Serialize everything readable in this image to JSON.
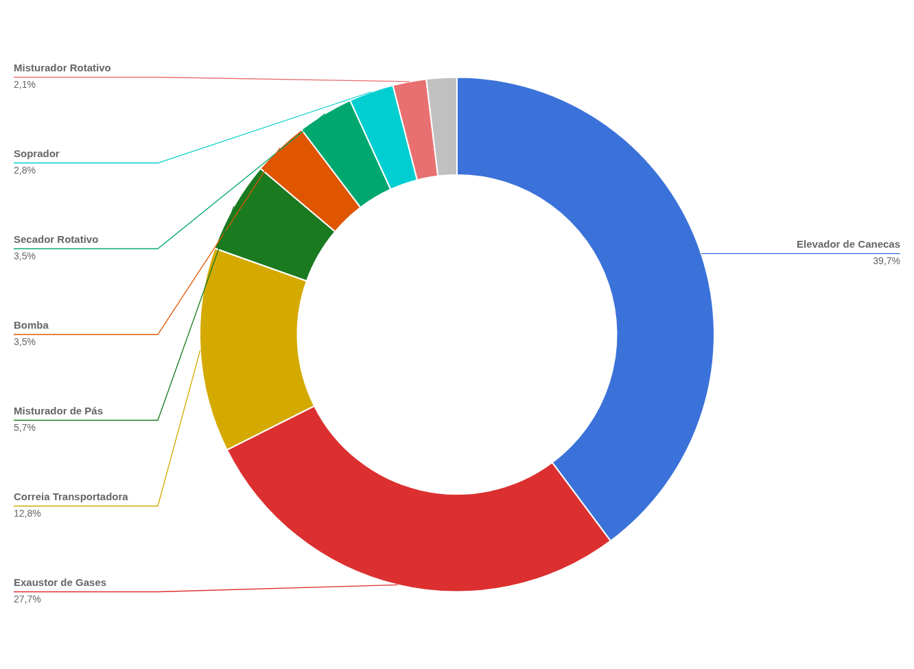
{
  "chart_data": {
    "type": "pie",
    "categories": [
      "Elevador de Canecas",
      "Exaustor de Gases",
      "Correia Transportadora",
      "Misturador de Pás",
      "Bomba",
      "Secador Rotativo",
      "Soprador",
      "Misturador Rotativo",
      null
    ],
    "values": [
      39.7,
      27.7,
      12.8,
      5.7,
      3.5,
      3.5,
      2.8,
      2.1,
      1.9
    ],
    "value_labels": [
      "39,7%",
      "27,7%",
      "12,8%",
      "5,7%",
      "3,5%",
      "3,5%",
      "2,8%",
      "2,1%",
      null
    ],
    "colors": [
      "#3B72D9",
      "#DC3030",
      "#D4AA00",
      "#1A7A20",
      "#E05500",
      "#00A870",
      "#00CED1",
      "#E87070",
      "#C0C0C0"
    ],
    "data_labels": true
  }
}
